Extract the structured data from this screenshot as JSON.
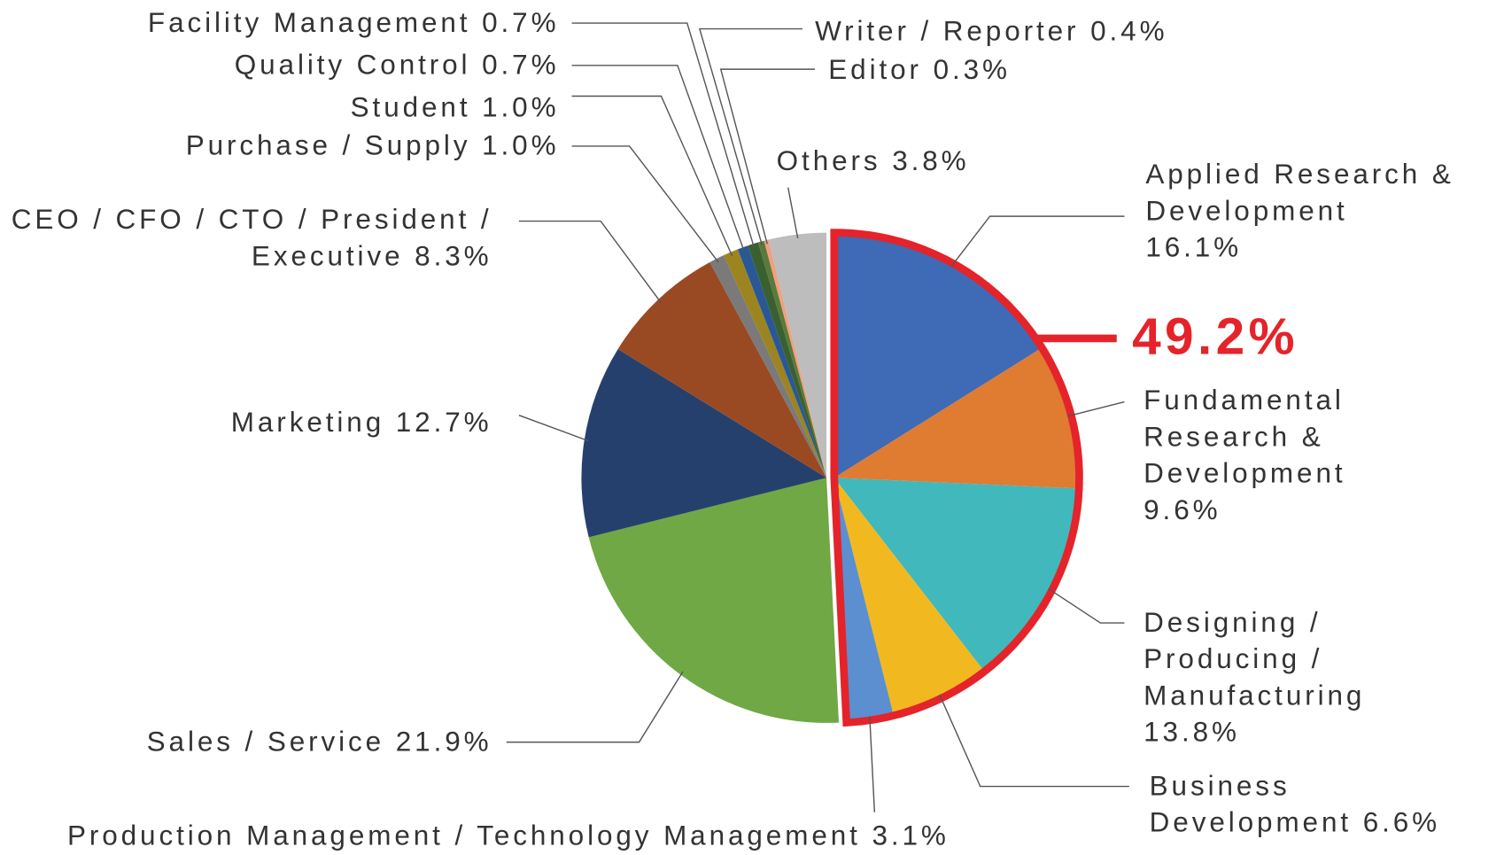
{
  "chart_data": {
    "type": "pie",
    "categories": [
      "Applied Research & Development",
      "Fundamental Research & Development",
      "Designing / Producing / Manufacturing",
      "Business Development",
      "Production Management / Technology Management",
      "Sales / Service",
      "Marketing",
      "CEO / CFO / CTO / President / Executive",
      "Purchase / Supply",
      "Student",
      "Quality Control",
      "Facility Management",
      "Writer / Reporter",
      "Editor",
      "Others"
    ],
    "values": [
      16.1,
      9.6,
      13.8,
      6.6,
      3.1,
      21.9,
      12.7,
      8.3,
      1.0,
      1.0,
      0.7,
      0.7,
      0.4,
      0.3,
      3.8
    ],
    "value_labels": [
      "16.1%",
      "9.6%",
      "13.8%",
      "6.6%",
      "3.1%",
      "21.9%",
      "12.7%",
      "8.3%",
      "1.0%",
      "1.0%",
      "0.7%",
      "0.7%",
      "0.4%",
      "0.3%",
      "3.8%"
    ],
    "colors": [
      "#3f6ab5",
      "#e07b32",
      "#41b8bb",
      "#f2b81f",
      "#5b8fd0",
      "#70a845",
      "#26406e",
      "#9a4a22",
      "#7a7a7a",
      "#9c8420",
      "#2a5896",
      "#3a6030",
      "#5b7a3a",
      "#f0a080",
      "#bdbdbd"
    ],
    "highlight": {
      "text": "49.2%",
      "color": "#e5232a",
      "slices": 5
    }
  }
}
